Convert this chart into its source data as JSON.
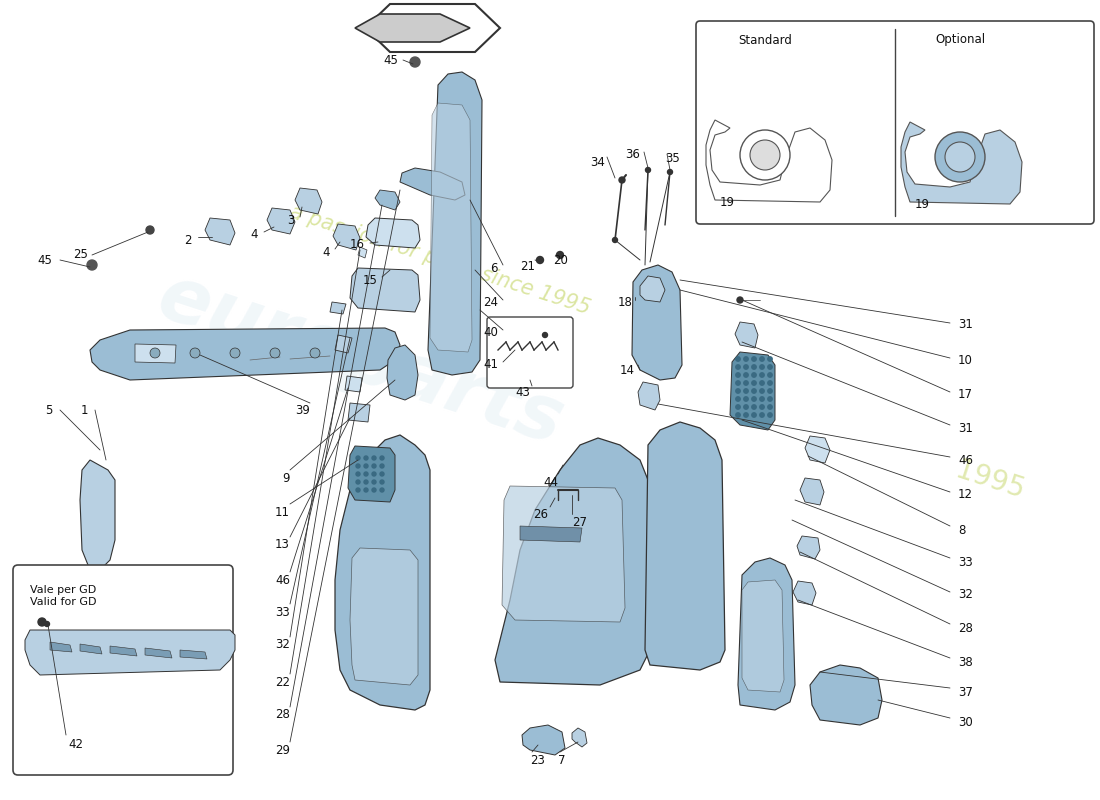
{
  "bg": "#ffffff",
  "pc": "#9bbdd4",
  "pc2": "#b8d0e2",
  "pc3": "#cde0ee",
  "lc": "#333333",
  "lc2": "#555555",
  "wm1_color": "#c8d870",
  "wm2_color": "#d0d8c0",
  "inset_label": "Vale per GD\nValid for GD",
  "std_label": "Standard",
  "opt_label": "Optional",
  "fs": 8.5
}
